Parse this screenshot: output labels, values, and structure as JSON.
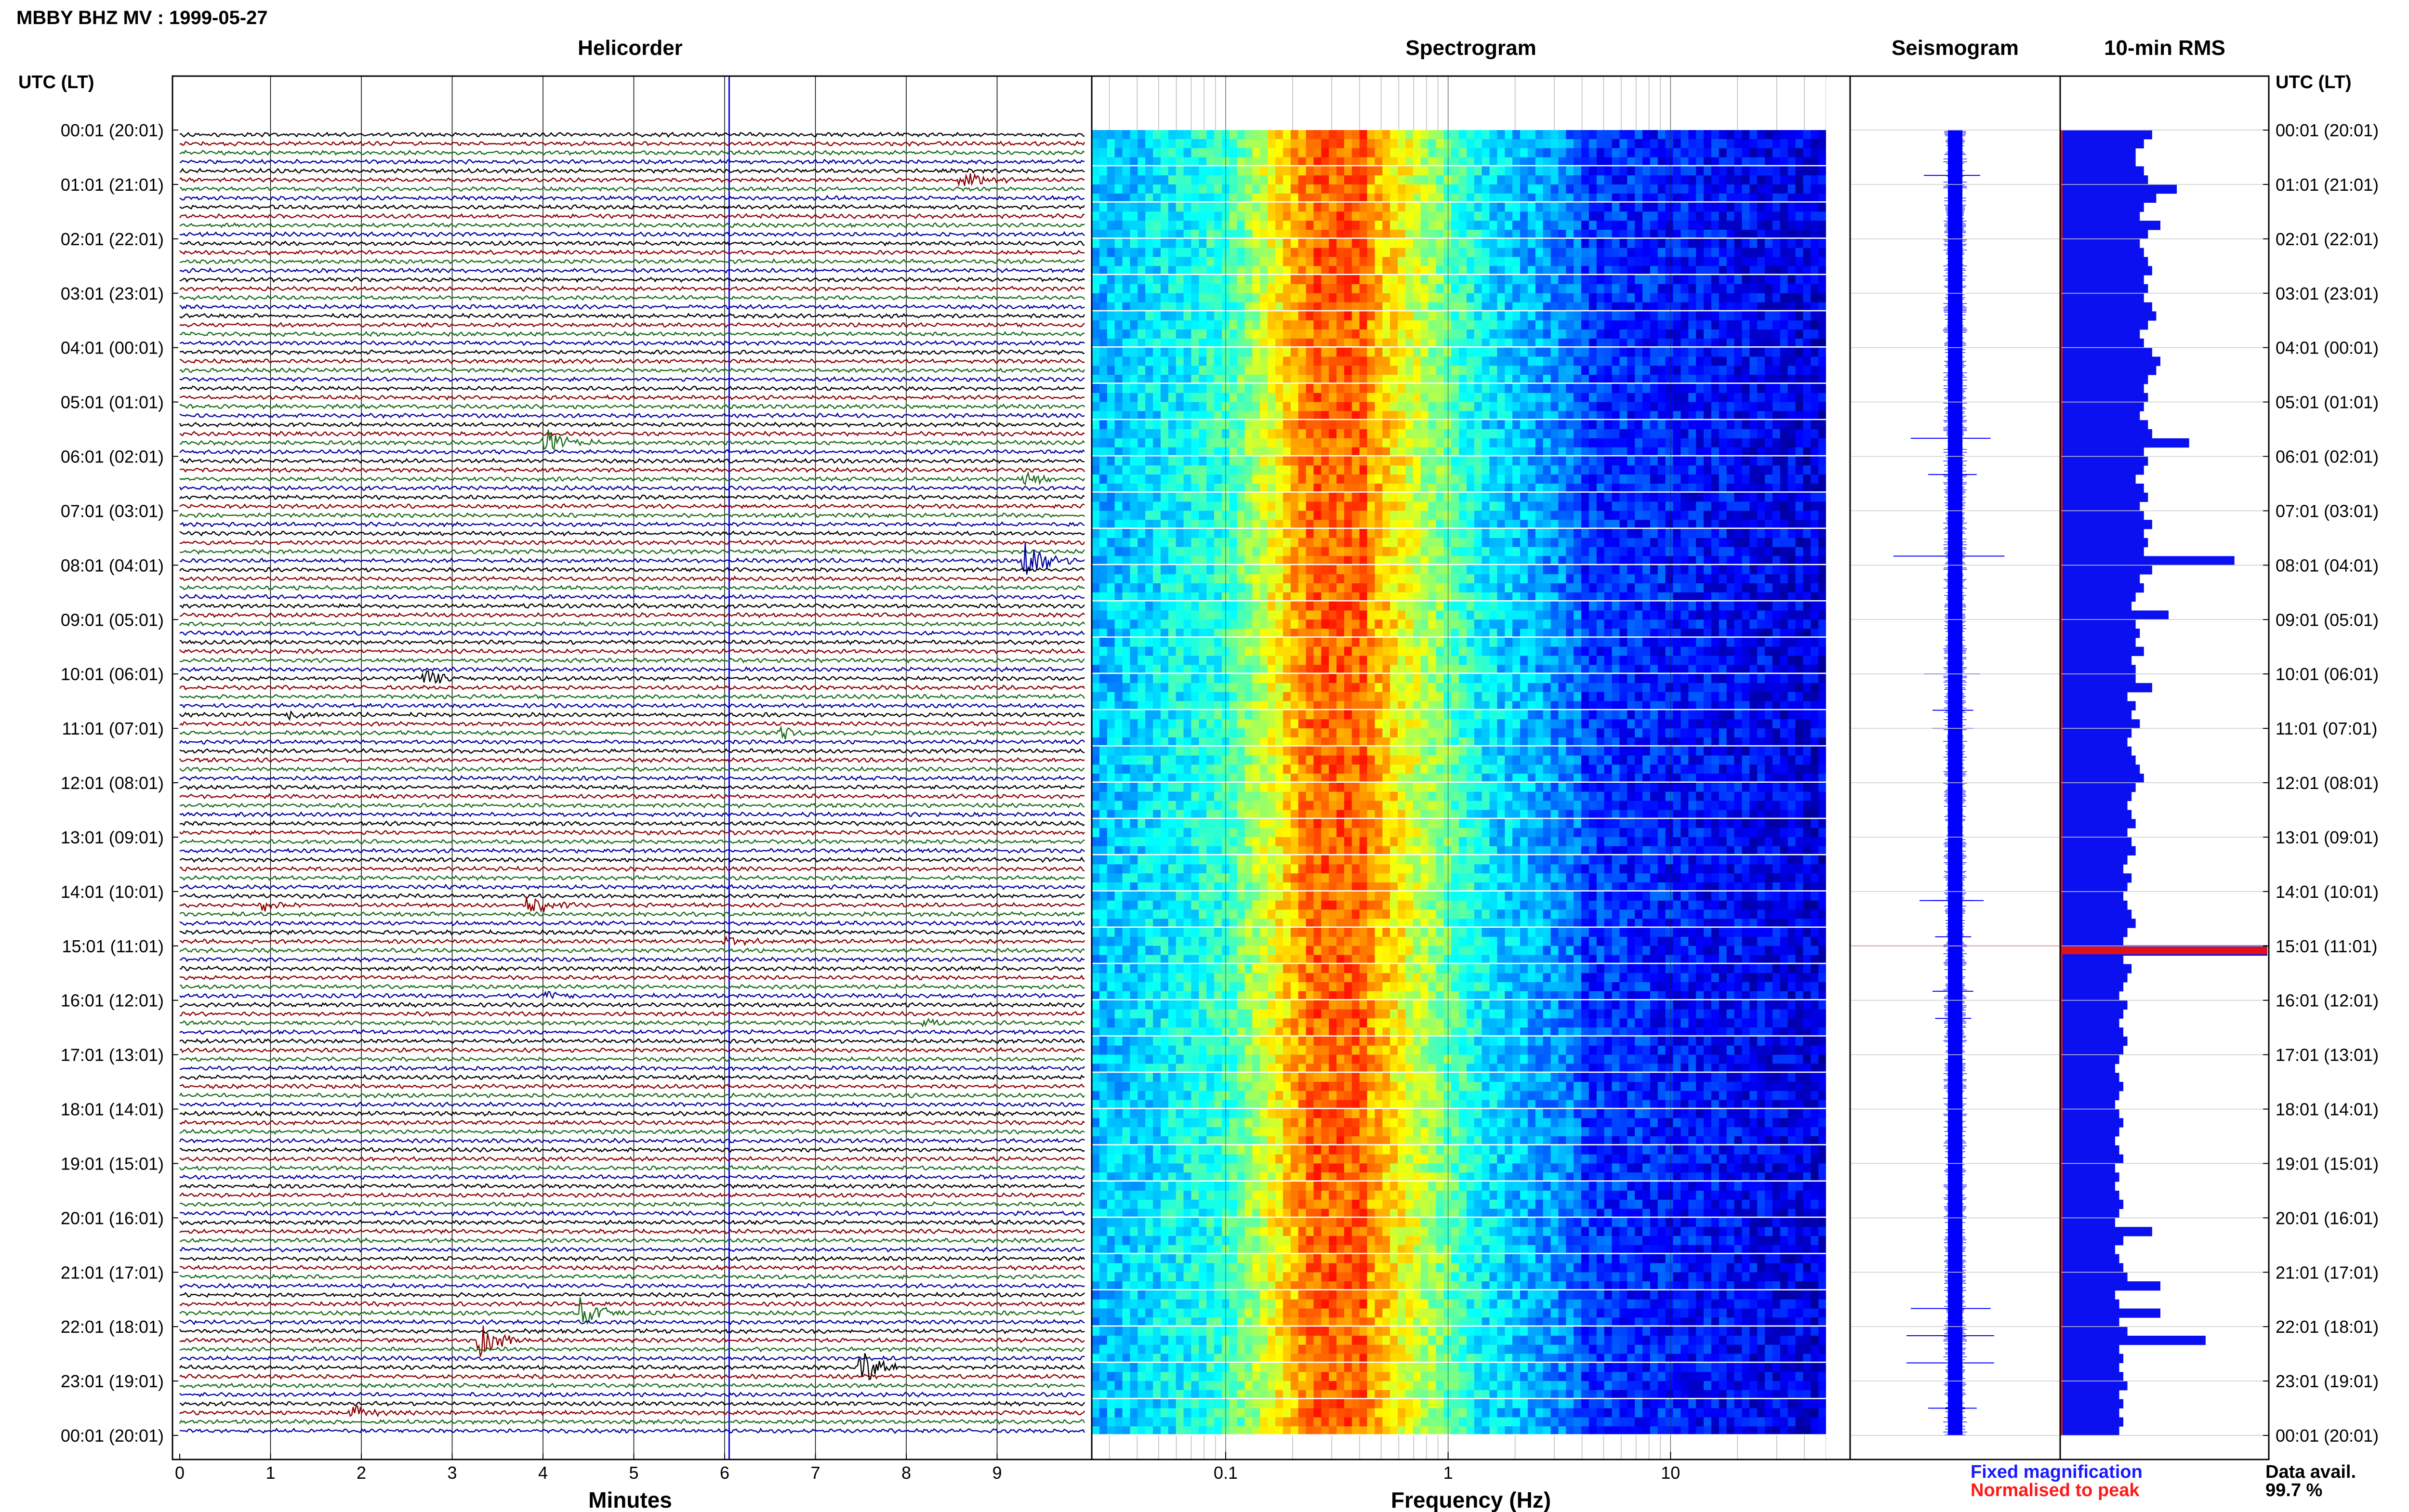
{
  "header": {
    "title": "MBBY BHZ MV : 1999-05-27"
  },
  "panels": {
    "helicorder": "Helicorder",
    "spectrogram": "Spectrogram",
    "seismogram": "Seismogram",
    "rms": "10-min RMS"
  },
  "axis_labels": {
    "left_time": "UTC (LT)",
    "right_time": "UTC (LT)",
    "minutes": "Minutes",
    "frequency": "Frequency (Hz)"
  },
  "legend": {
    "fixed": "Fixed magnification",
    "fixed_color": "#1a1aff",
    "normalised": "Normalised to peak",
    "normalised_color": "#ff1a1a"
  },
  "data_availability": {
    "label": "Data avail.",
    "value": "99.7 %"
  },
  "colors": {
    "trace_cycle": [
      "#000000",
      "#8b0000",
      "#1a6b1a",
      "#0000a0"
    ],
    "rms_bar": "#0a10f0",
    "rms_peak": "#e0101a"
  },
  "chart_data": {
    "type": "heatmap",
    "time_ticks": [
      "00:01 (20:01)",
      "01:01 (21:01)",
      "02:01 (22:01)",
      "03:01 (23:01)",
      "04:01 (00:01)",
      "05:01 (01:01)",
      "06:01 (02:01)",
      "07:01 (03:01)",
      "08:01 (04:01)",
      "09:01 (05:01)",
      "10:01 (06:01)",
      "11:01 (07:01)",
      "12:01 (08:01)",
      "13:01 (09:01)",
      "14:01 (10:01)",
      "15:01 (11:01)",
      "16:01 (12:01)",
      "17:01 (13:01)",
      "18:01 (14:01)",
      "19:01 (15:01)",
      "20:01 (16:01)",
      "21:01 (17:01)",
      "22:01 (18:01)",
      "23:01 (19:01)",
      "00:01 (20:01)"
    ],
    "minutes_ticks": [
      "0",
      "1",
      "2",
      "3",
      "4",
      "5",
      "6",
      "7",
      "8",
      "9"
    ],
    "frequency_ticks": [
      {
        "value": 0.1,
        "label": "0.1"
      },
      {
        "value": 1,
        "label": "1"
      },
      {
        "value": 10,
        "label": "10"
      }
    ],
    "frequency_range": [
      0.025,
      50
    ],
    "frequency_scale": "log",
    "helicorder_lines": 144,
    "events": [
      {
        "row": 5,
        "minute": 8.6,
        "amp": 2.5
      },
      {
        "row": 34,
        "minute": 4.0,
        "amp": 4
      },
      {
        "row": 38,
        "minute": 9.3,
        "amp": 2
      },
      {
        "row": 47,
        "minute": 9.3,
        "amp": 6
      },
      {
        "row": 60,
        "minute": 2.7,
        "amp": 2.5
      },
      {
        "row": 64,
        "minute": 1.2,
        "amp": 1.5
      },
      {
        "row": 66,
        "minute": 6.6,
        "amp": 1.5
      },
      {
        "row": 85,
        "minute": 3.8,
        "amp": 3
      },
      {
        "row": 85,
        "minute": 0.9,
        "amp": 1.5
      },
      {
        "row": 89,
        "minute": 6.0,
        "amp": 1.2
      },
      {
        "row": 95,
        "minute": 4.0,
        "amp": 1.5
      },
      {
        "row": 98,
        "minute": 8.2,
        "amp": 1.2
      },
      {
        "row": 130,
        "minute": 4.4,
        "amp": 4
      },
      {
        "row": 133,
        "minute": 3.3,
        "amp": 4.5
      },
      {
        "row": 136,
        "minute": 7.5,
        "amp": 4.5
      },
      {
        "row": 141,
        "minute": 1.9,
        "amp": 2
      }
    ],
    "rms_values": [
      2.2,
      2.0,
      1.8,
      1.8,
      2.0,
      2.1,
      2.2,
      2.3,
      2.0,
      1.9,
      2.4,
      2.1,
      1.9,
      2.0,
      2.1,
      2.2,
      2.0,
      2.1,
      2.0,
      2.2,
      2.3,
      2.1,
      1.9,
      2.0,
      2.2,
      2.4,
      2.3,
      2.1,
      2.0,
      2.1,
      2.0,
      1.9,
      2.1,
      2.2,
      2.3,
      2.0,
      2.1,
      2.0,
      1.8,
      2.0,
      2.1,
      1.9,
      2.0,
      2.2,
      2.0,
      2.1,
      2.0,
      1.9,
      2.2,
      1.9,
      2.0,
      1.8,
      1.7,
      2.1,
      1.8,
      1.9,
      1.8,
      2.0,
      1.7,
      1.8,
      1.8,
      1.7,
      1.6,
      1.8,
      1.7,
      1.9,
      1.7,
      1.6,
      1.7,
      1.8,
      1.9,
      2.0,
      1.8,
      1.7,
      1.6,
      1.7,
      1.8,
      1.6,
      1.7,
      1.8,
      1.6,
      1.5,
      1.7,
      1.6,
      1.5,
      1.6,
      1.7,
      1.8,
      1.6,
      1.5,
      1.6,
      1.5,
      1.7,
      1.6,
      1.5,
      1.4,
      1.6,
      1.5,
      1.4,
      1.5,
      1.6,
      1.5,
      1.4,
      1.3,
      1.4,
      1.5,
      1.4,
      1.3,
      1.4,
      1.5,
      1.4,
      1.3,
      1.4,
      1.5,
      1.3,
      1.4,
      1.3,
      1.4,
      1.5,
      1.4,
      1.3,
      1.4,
      1.5,
      1.3,
      1.4,
      1.5,
      1.6,
      1.4,
      1.3,
      1.4,
      1.5,
      1.4,
      1.6,
      1.5,
      1.4,
      1.5,
      1.4,
      1.5,
      1.6,
      1.4,
      1.5,
      1.4,
      1.5,
      1.4,
      1.6
    ],
    "rms_spikes": [
      {
        "row": 6,
        "value": 2.8
      },
      {
        "row": 34,
        "value": 3.1
      },
      {
        "row": 47,
        "value": 4.2
      },
      {
        "row": 53,
        "value": 2.6
      },
      {
        "row": 61,
        "value": 2.2
      },
      {
        "row": 121,
        "value": 2.2
      },
      {
        "row": 127,
        "value": 2.4
      },
      {
        "row": 130,
        "value": 2.4
      },
      {
        "row": 133,
        "value": 3.5
      }
    ],
    "rms_peak_row": 90,
    "rms_peak_value": 5.0,
    "rms_max": 5.0
  }
}
